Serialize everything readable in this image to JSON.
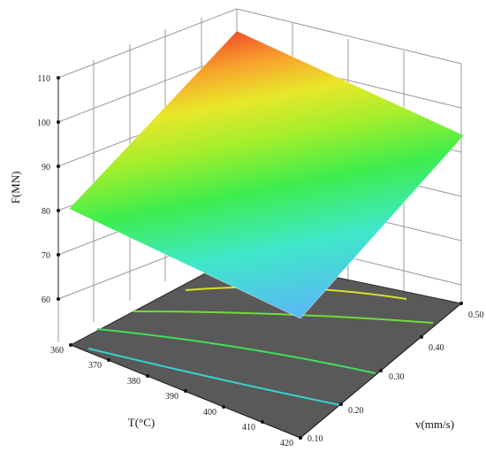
{
  "chart_data": {
    "type": "surface3d",
    "zlabel": "F(MN)",
    "xlabel": "T(°C)",
    "ylabel": "v(mm/s)",
    "z_ticks": [
      "60",
      "70",
      "80",
      "90",
      "100",
      "110"
    ],
    "x_ticks": [
      "360",
      "370",
      "380",
      "390",
      "400",
      "410",
      "420"
    ],
    "y_ticks": [
      "0.10",
      "0.20",
      "0.30",
      "0.40",
      "0.50"
    ],
    "xlim": [
      360,
      420
    ],
    "ylim": [
      0.1,
      0.5
    ],
    "zlim": [
      55,
      110
    ],
    "surface_corners": [
      {
        "T": 360,
        "v": 0.1,
        "F": 77
      },
      {
        "T": 360,
        "v": 0.5,
        "F": 106
      },
      {
        "T": 420,
        "v": 0.5,
        "F": 96
      },
      {
        "T": 420,
        "v": 0.1,
        "F": 59
      }
    ],
    "contour_lines": [
      {
        "color": "#d6e02a"
      },
      {
        "color": "#6fdc3a"
      },
      {
        "color": "#3fe05a"
      },
      {
        "color": "#35d4d0"
      }
    ],
    "colors": {
      "floor": "#595959",
      "grid": "#9a9a9a",
      "surface_low": "#5ab8f5",
      "surface_high": "#f05a2a"
    }
  }
}
